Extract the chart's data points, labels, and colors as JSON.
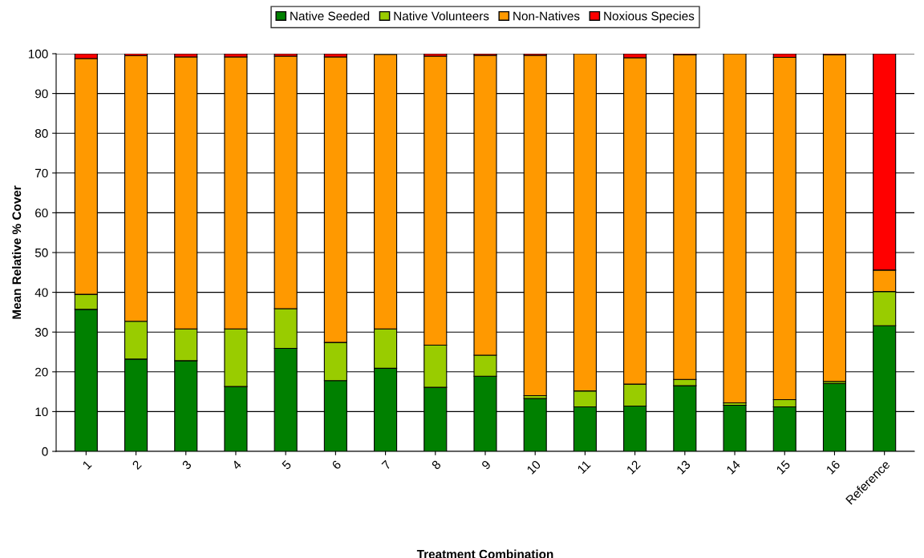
{
  "chart_data": {
    "type": "bar",
    "stacked": true,
    "xlabel": "Treatment Combination",
    "ylabel": "Mean Relative % Cover",
    "categories": [
      "1",
      "2",
      "3",
      "4",
      "5",
      "6",
      "7",
      "8",
      "9",
      "10",
      "11",
      "12",
      "13",
      "14",
      "15",
      "16",
      "Reference"
    ],
    "series": [
      {
        "name": "Native Seeded",
        "color": "#008000",
        "values": [
          35.7,
          23.2,
          22.8,
          16.3,
          25.9,
          17.8,
          20.9,
          16.1,
          18.9,
          13.3,
          11.2,
          11.4,
          16.5,
          11.6,
          11.2,
          17.1,
          31.6
        ]
      },
      {
        "name": "Native Volunteers",
        "color": "#99cc00",
        "values": [
          3.8,
          9.5,
          8.0,
          14.5,
          10.0,
          9.6,
          9.9,
          10.6,
          5.3,
          0.7,
          4.0,
          5.5,
          1.6,
          0.6,
          1.8,
          0.5,
          8.6
        ]
      },
      {
        "name": "Non-Natives",
        "color": "#ff9900",
        "values": [
          59.3,
          66.8,
          68.4,
          68.4,
          63.5,
          71.8,
          69.0,
          72.7,
          75.4,
          85.6,
          84.8,
          82.1,
          81.6,
          87.8,
          86.1,
          82.1,
          5.4
        ]
      },
      {
        "name": "Noxious Species",
        "color": "#ff0000",
        "values": [
          1.2,
          0.5,
          0.8,
          0.8,
          0.6,
          0.8,
          null,
          0.6,
          0.4,
          0.4,
          0,
          1.0,
          0.3,
          0,
          0.9,
          0.3,
          54.4
        ]
      }
    ],
    "ylim": [
      0,
      100
    ],
    "yticks": [
      0,
      10,
      20,
      30,
      40,
      50,
      60,
      70,
      80,
      90,
      100
    ],
    "grid": "y",
    "legend": "top"
  }
}
